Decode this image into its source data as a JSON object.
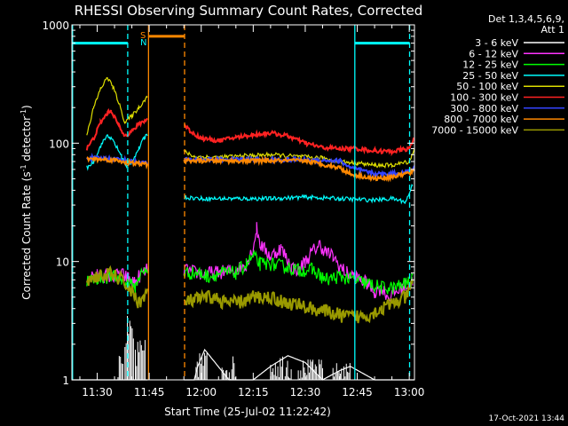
{
  "chart_data": {
    "type": "line",
    "title": "RHESSI Observing Summary Count Rates, Corrected",
    "ylabel": "Corrected Count Rate (s",
    "ylabel_sup": "-1",
    "ylabel_mid": " detector",
    "ylabel_close": ")",
    "xlabel": "Start Time (25-Jul-02 11:22:42)",
    "yscale": "log",
    "ylim": [
      1,
      1000
    ],
    "xlim_minutes": [
      22.7,
      121.5
    ],
    "y_ticks": [
      {
        "value": 1,
        "label": "1"
      },
      {
        "value": 10,
        "label": "10"
      },
      {
        "value": 100,
        "label": "100"
      },
      {
        "value": 1000,
        "label": "1000"
      }
    ],
    "x_ticks": [
      {
        "minute": 30,
        "label": "11:30"
      },
      {
        "minute": 45,
        "label": "11:45"
      },
      {
        "minute": 60,
        "label": "12:00"
      },
      {
        "minute": 75,
        "label": "12:15"
      },
      {
        "minute": 90,
        "label": "12:30"
      },
      {
        "minute": 105,
        "label": "12:45"
      },
      {
        "minute": 120,
        "label": "13:00"
      }
    ],
    "legend_header": [
      "Det 1,3,4,5,6,9,",
      "Att 1"
    ],
    "flags": {
      "saa_label": "S",
      "night_label": "N"
    },
    "series": [
      {
        "name": "3 - 6 keV",
        "label": "3 - 6 keV",
        "color": "#ffffff",
        "x": [
          22.7,
          44.5,
          45.5,
          54,
          58,
          59,
          61,
          64,
          68,
          75,
          80,
          85,
          90,
          95,
          100,
          103,
          110,
          115,
          119,
          121.5
        ],
        "y": [
          1,
          1,
          1,
          1,
          1,
          1.3,
          1.8,
          1.4,
          1,
          1,
          1.3,
          1.6,
          1.4,
          1,
          1.2,
          1.3,
          1,
          1,
          1,
          1
        ]
      },
      {
        "name": "6 - 12 keV",
        "label": "6 - 12 keV",
        "color": "#ff33ff",
        "x": [
          27,
          30,
          34,
          37,
          39,
          41,
          42,
          44.5,
          55,
          59,
          61,
          63,
          67,
          70,
          73,
          75,
          76,
          77,
          80,
          83,
          86,
          88,
          90,
          92,
          94,
          96,
          98,
          100,
          102,
          104,
          106,
          108,
          110,
          112,
          114,
          116,
          118,
          121
        ],
        "y": [
          7.5,
          7.6,
          7.5,
          7.8,
          7.2,
          6.5,
          7.5,
          8.5,
          8.5,
          8,
          7.8,
          8,
          8.2,
          8.5,
          9.5,
          13,
          19,
          14,
          11,
          13,
          9,
          8.5,
          10,
          12,
          14,
          12,
          11,
          9,
          8,
          7.5,
          7,
          6.5,
          5.5,
          6,
          5,
          5.5,
          6,
          7
        ]
      },
      {
        "name": "12 - 25 keV",
        "label": "12 - 25 keV",
        "color": "#00ff00",
        "x": [
          27,
          30,
          34,
          37,
          39,
          41,
          42,
          44.5,
          55,
          59,
          62,
          66,
          70,
          73,
          75,
          77,
          80,
          84,
          88,
          92,
          96,
          100,
          104,
          108,
          112,
          116,
          119,
          121
        ],
        "y": [
          6.8,
          7.2,
          7.5,
          7,
          6.5,
          6,
          7.5,
          8.5,
          8,
          8,
          7.5,
          8,
          8,
          9.5,
          11,
          9.5,
          9.5,
          9,
          8.5,
          8.5,
          7,
          7.5,
          7,
          6.5,
          6,
          6,
          6.5,
          7
        ]
      },
      {
        "name": "25 - 50 keV",
        "label": "25 - 50 keV",
        "color": "#00ffff",
        "x": [
          27,
          29,
          31,
          33,
          35,
          37,
          38.5,
          40,
          42,
          43.5,
          44.5,
          55,
          60,
          70,
          80,
          90,
          100,
          110,
          115,
          119,
          121
        ],
        "y": [
          62,
          70,
          95,
          118,
          100,
          78,
          62,
          70,
          90,
          110,
          120,
          35,
          34,
          34,
          34,
          35,
          34,
          33,
          34,
          32,
          45
        ]
      },
      {
        "name": "50 - 100 keV",
        "label": "50 - 100 keV",
        "color": "#dddd00",
        "x": [
          27,
          29,
          31,
          33,
          34.5,
          36,
          38,
          40,
          42,
          44.5,
          55,
          58,
          65,
          72,
          80,
          88,
          95,
          100,
          105,
          110,
          115,
          120,
          121.5
        ],
        "y": [
          120,
          200,
          290,
          360,
          300,
          230,
          150,
          170,
          200,
          250,
          85,
          77,
          76,
          78,
          80,
          77,
          75,
          70,
          68,
          65,
          65,
          70,
          90
        ]
      },
      {
        "name": "100 - 300 keV",
        "label": "100 - 300 keV",
        "color": "#ff2222",
        "x": [
          27,
          29,
          31,
          33,
          34,
          36,
          37.5,
          39,
          40.5,
          42,
          44.5,
          55,
          57,
          60,
          65,
          70,
          75,
          80,
          85,
          90,
          95,
          100,
          105,
          110,
          115,
          120,
          121.5
        ],
        "y": [
          90,
          110,
          150,
          180,
          190,
          145,
          120,
          120,
          130,
          145,
          160,
          145,
          125,
          110,
          105,
          112,
          118,
          122,
          115,
          100,
          92,
          90,
          90,
          86,
          85,
          90,
          110
        ]
      },
      {
        "name": "300 - 800 keV",
        "label": "300 - 800 keV",
        "color": "#3344ff",
        "x": [
          27,
          35,
          40,
          44.5,
          55,
          60,
          70,
          80,
          90,
          100,
          103,
          110,
          115,
          120,
          121.5
        ],
        "y": [
          75,
          74,
          70,
          68,
          72,
          73,
          73,
          73,
          72,
          71,
          62,
          55,
          55,
          58,
          60
        ]
      },
      {
        "name": "800 - 7000 keV",
        "label": "800 - 7000 keV",
        "color": "#ff8800",
        "x": [
          27,
          35,
          40,
          44.5,
          55,
          60,
          70,
          80,
          90,
          100,
          103,
          110,
          115,
          120,
          121.5
        ],
        "y": [
          74,
          72,
          68,
          66,
          71,
          71,
          71,
          71,
          71,
          62,
          55,
          50,
          52,
          56,
          58
        ]
      },
      {
        "name": "7000 - 15000 keV",
        "label": "7000 - 15000 keV",
        "color": "#999900",
        "x": [
          27,
          30,
          34,
          37,
          39,
          41,
          42,
          44.5,
          55,
          59,
          63,
          67,
          71,
          75,
          80,
          84,
          88,
          92,
          96,
          100,
          104,
          108,
          112,
          116,
          119,
          121
        ],
        "y": [
          7,
          7.5,
          7.8,
          7,
          6,
          5,
          4.5,
          5.5,
          4.5,
          4.8,
          5,
          4.5,
          4.5,
          5,
          5,
          4.5,
          4.3,
          4,
          3.8,
          3.5,
          3.4,
          3.5,
          4,
          4.5,
          5,
          6.5
        ]
      }
    ],
    "vlines": [
      {
        "minute": 22.9,
        "color": "#00ffff",
        "style": "solid"
      },
      {
        "minute": 38.8,
        "color": "#00ffff",
        "style": "dashed"
      },
      {
        "minute": 44.8,
        "color": "#ff8800",
        "style": "solid"
      },
      {
        "minute": 55.2,
        "color": "#ff8800",
        "style": "dashed"
      },
      {
        "minute": 104.3,
        "color": "#00ffff",
        "style": "solid"
      },
      {
        "minute": 120.1,
        "color": "#00ffff",
        "style": "dashed"
      }
    ],
    "flag_bars": [
      {
        "name": "night",
        "color": "#00ffff",
        "x0": 22.9,
        "x1": 38.8,
        "y": 700
      },
      {
        "name": "saa",
        "color": "#ff8800",
        "x0": 44.8,
        "x1": 55.2,
        "y": 800
      },
      {
        "name": "night",
        "color": "#00ffff",
        "x0": 104.3,
        "x1": 120.1,
        "y": 700
      }
    ]
  },
  "footer": {
    "date": "17-Oct-2021 13:44"
  }
}
